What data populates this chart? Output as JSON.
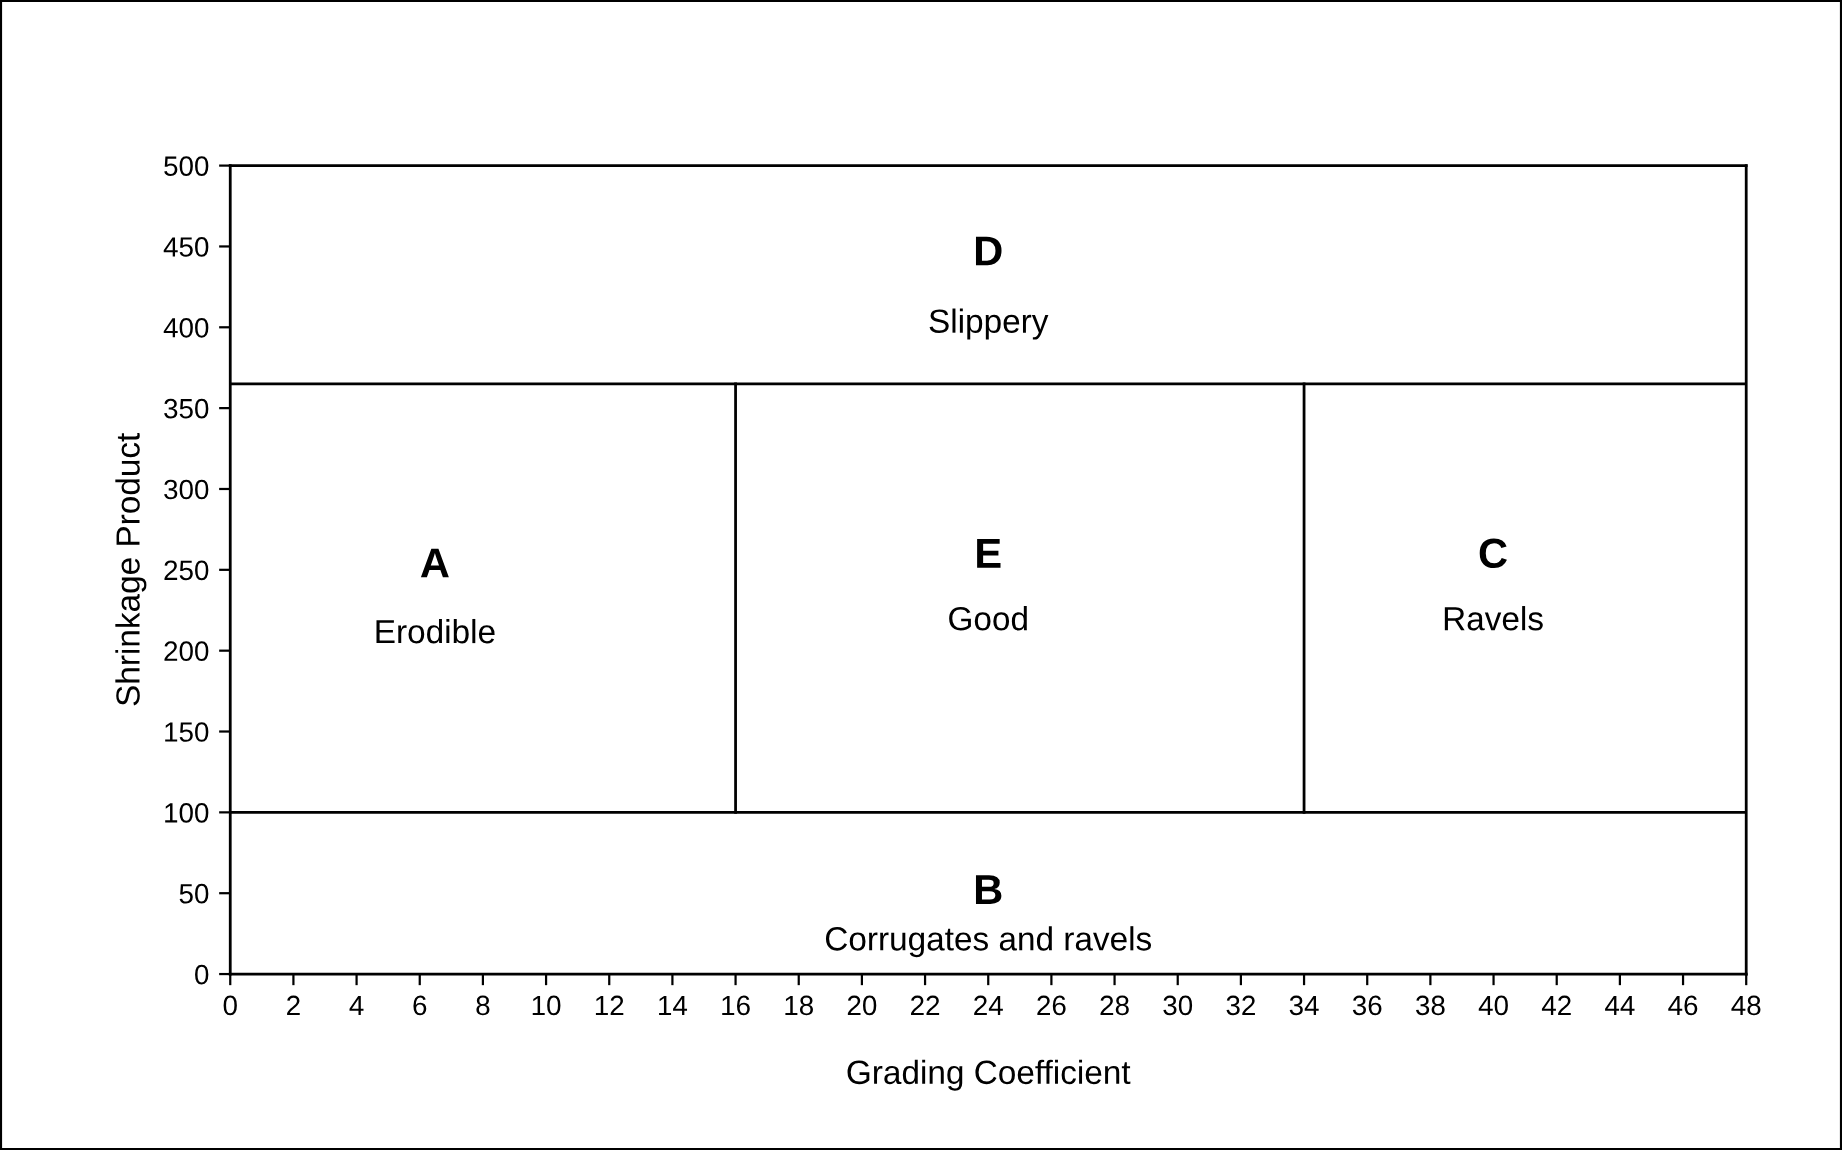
{
  "chart_data": {
    "type": "line",
    "xlabel": "Grading Coefficient",
    "ylabel": "Shrinkage Product",
    "xlim": [
      0,
      48
    ],
    "xticks": [
      0,
      2,
      4,
      6,
      8,
      10,
      12,
      14,
      16,
      18,
      20,
      22,
      24,
      26,
      28,
      30,
      32,
      34,
      36,
      38,
      40,
      42,
      44,
      46,
      48
    ],
    "ylim": [
      0,
      500
    ],
    "yticks": [
      0,
      50,
      100,
      150,
      200,
      250,
      300,
      350,
      400,
      450,
      500
    ],
    "grid": false,
    "legend": false,
    "marker": "none",
    "line_style": "solid",
    "series": [
      {
        "color": "#000000",
        "x": [
          0,
          48
        ],
        "values": [
          365,
          365
        ]
      },
      {
        "color": "#000000",
        "x": [
          0,
          48
        ],
        "values": [
          100,
          100
        ]
      },
      {
        "color": "#000000",
        "x": [
          16,
          16
        ],
        "values": [
          100,
          365
        ]
      },
      {
        "color": "#000000",
        "x": [
          34,
          34
        ],
        "values": [
          100,
          365
        ]
      }
    ],
    "annotations": [
      "A",
      "Erodible",
      "E",
      "Good",
      "C",
      "Ravels",
      "D",
      "Slippery",
      "B",
      "Corrugates and ravels"
    ]
  }
}
